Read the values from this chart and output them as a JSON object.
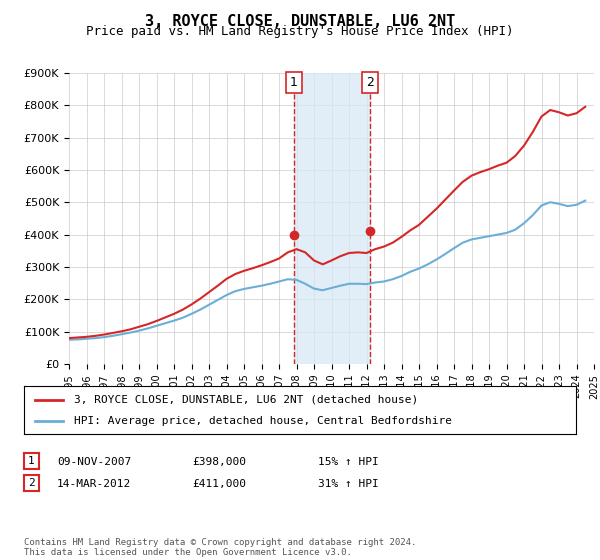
{
  "title": "3, ROYCE CLOSE, DUNSTABLE, LU6 2NT",
  "subtitle": "Price paid vs. HM Land Registry's House Price Index (HPI)",
  "ylabel_ticks": [
    "£0",
    "£100K",
    "£200K",
    "£300K",
    "£400K",
    "£500K",
    "£600K",
    "£700K",
    "£800K",
    "£900K"
  ],
  "ylim": [
    0,
    900000
  ],
  "legend_line1": "3, ROYCE CLOSE, DUNSTABLE, LU6 2NT (detached house)",
  "legend_line2": "HPI: Average price, detached house, Central Bedfordshire",
  "transaction1_label": "1",
  "transaction1_date": "09-NOV-2007",
  "transaction1_price": "£398,000",
  "transaction1_hpi": "15% ↑ HPI",
  "transaction2_label": "2",
  "transaction2_date": "14-MAR-2012",
  "transaction2_price": "£411,000",
  "transaction2_hpi": "31% ↑ HPI",
  "footer": "Contains HM Land Registry data © Crown copyright and database right 2024.\nThis data is licensed under the Open Government Licence v3.0.",
  "hpi_color": "#6baed6",
  "price_color": "#d62728",
  "shade_color": "#d6e8f5",
  "marker1_x": 2007.86,
  "marker1_y": 398000,
  "marker2_x": 2012.21,
  "marker2_y": 411000,
  "hpi_data_x": [
    1995,
    1995.5,
    1996,
    1996.5,
    1997,
    1997.5,
    1998,
    1998.5,
    1999,
    1999.5,
    2000,
    2000.5,
    2001,
    2001.5,
    2002,
    2002.5,
    2003,
    2003.5,
    2004,
    2004.5,
    2005,
    2005.5,
    2006,
    2006.5,
    2007,
    2007.5,
    2008,
    2008.5,
    2009,
    2009.5,
    2010,
    2010.5,
    2011,
    2011.5,
    2012,
    2012.5,
    2013,
    2013.5,
    2014,
    2014.5,
    2015,
    2015.5,
    2016,
    2016.5,
    2017,
    2017.5,
    2018,
    2018.5,
    2019,
    2019.5,
    2020,
    2020.5,
    2021,
    2021.5,
    2022,
    2022.5,
    2023,
    2023.5,
    2024,
    2024.5
  ],
  "hpi_data_y": [
    75000,
    76000,
    78000,
    80000,
    83000,
    87000,
    92000,
    97000,
    103000,
    110000,
    118000,
    126000,
    134000,
    143000,
    155000,
    168000,
    183000,
    198000,
    213000,
    225000,
    232000,
    237000,
    242000,
    248000,
    255000,
    262000,
    260000,
    248000,
    233000,
    228000,
    235000,
    242000,
    248000,
    248000,
    247000,
    252000,
    255000,
    262000,
    272000,
    285000,
    295000,
    308000,
    323000,
    340000,
    358000,
    375000,
    385000,
    390000,
    395000,
    400000,
    405000,
    415000,
    435000,
    460000,
    490000,
    500000,
    495000,
    488000,
    492000,
    505000
  ],
  "price_data_x": [
    1995,
    1995.5,
    1996,
    1996.5,
    1997,
    1997.5,
    1998,
    1998.5,
    1999,
    1999.5,
    2000,
    2000.5,
    2001,
    2001.5,
    2002,
    2002.5,
    2003,
    2003.5,
    2004,
    2004.5,
    2005,
    2005.5,
    2006,
    2006.5,
    2007,
    2007.5,
    2008,
    2008.5,
    2009,
    2009.5,
    2010,
    2010.5,
    2011,
    2011.5,
    2012,
    2012.5,
    2013,
    2013.5,
    2014,
    2014.5,
    2015,
    2015.5,
    2016,
    2016.5,
    2017,
    2017.5,
    2018,
    2018.5,
    2019,
    2019.5,
    2020,
    2020.5,
    2021,
    2021.5,
    2022,
    2022.5,
    2023,
    2023.5,
    2024,
    2024.5
  ],
  "price_data_y": [
    80000,
    82000,
    84000,
    87000,
    91000,
    96000,
    101000,
    107000,
    115000,
    123000,
    133000,
    144000,
    155000,
    168000,
    184000,
    202000,
    222000,
    242000,
    263000,
    278000,
    288000,
    296000,
    305000,
    315000,
    326000,
    345000,
    355000,
    345000,
    320000,
    308000,
    320000,
    333000,
    343000,
    345000,
    343000,
    355000,
    363000,
    375000,
    393000,
    413000,
    430000,
    455000,
    480000,
    508000,
    536000,
    563000,
    582000,
    593000,
    602000,
    613000,
    622000,
    643000,
    675000,
    717000,
    765000,
    785000,
    778000,
    768000,
    775000,
    795000
  ],
  "xlim": [
    1995,
    2025
  ],
  "xticks": [
    1995,
    1996,
    1997,
    1998,
    1999,
    2000,
    2001,
    2002,
    2003,
    2004,
    2005,
    2006,
    2007,
    2008,
    2009,
    2010,
    2011,
    2012,
    2013,
    2014,
    2015,
    2016,
    2017,
    2018,
    2019,
    2020,
    2021,
    2022,
    2023,
    2024,
    2025
  ]
}
